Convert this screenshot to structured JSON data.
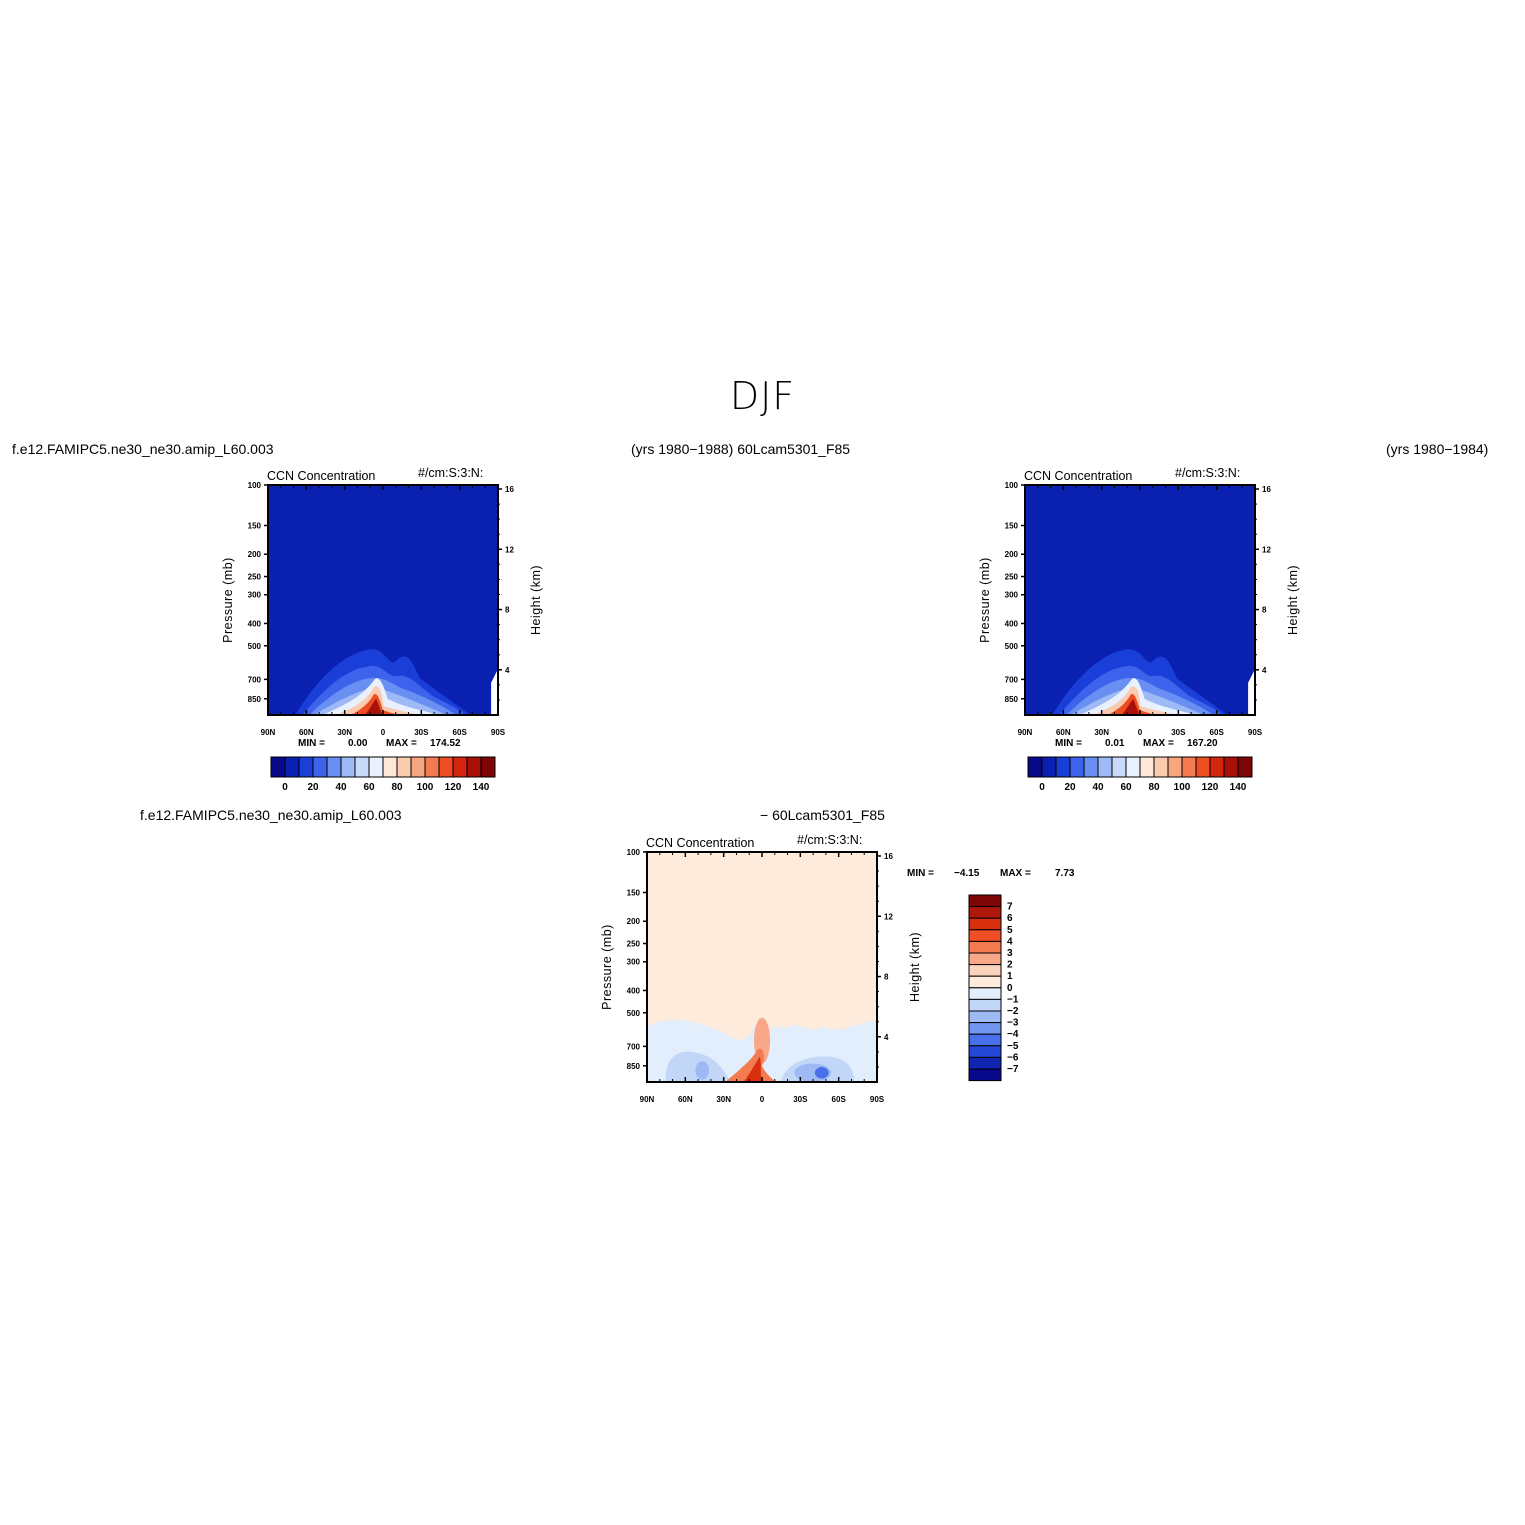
{
  "page": {
    "title": "DJF",
    "case_top_left": "f.e12.FAMIPC5.ne30_ne30.amip_L60.003",
    "case_top_mid": "(yrs 1980−1988)  60Lcam5301_F85",
    "case_top_right": "(yrs 1980−1984)",
    "case_bottom_left": "f.e12.FAMIPC5.ne30_ne30.amip_L60.003",
    "case_bottom_mid": "− 60Lcam5301_F85"
  },
  "chart_data": [
    {
      "type": "heatmap",
      "title": "CCN Concentration",
      "units": "#/cm:S:3:N:",
      "ylabel": "Pressure (mb)",
      "ylabel_right": "Height (km)",
      "x_ticks": [
        "90N",
        "60N",
        "30N",
        "0",
        "30S",
        "60S",
        "90S"
      ],
      "y_ticks": [
        100,
        150,
        200,
        250,
        300,
        400,
        500,
        700,
        850
      ],
      "y_right_ticks": [
        4,
        8,
        12,
        16
      ],
      "ylim": [
        100,
        1000
      ],
      "y_scale": "log",
      "min_label": "MIN =",
      "min": "0.00",
      "max_label": "MAX =",
      "max": "174.52",
      "colorbar_ticks": [
        0,
        20,
        40,
        60,
        80,
        100,
        120,
        140
      ],
      "colorbar_colors": [
        "#08088a",
        "#0a20b0",
        "#1a3fd8",
        "#3d63ec",
        "#6a8ff2",
        "#9dbaf7",
        "#c8dbfb",
        "#e8f1fd",
        "#fde8d8",
        "#fbcbb0",
        "#f7a680",
        "#f47a50",
        "#ee4d22",
        "#d2260e",
        "#a8100a",
        "#7d0505"
      ],
      "colorbar_orientation": "horizontal"
    },
    {
      "type": "heatmap",
      "title": "CCN Concentration",
      "units": "#/cm:S:3:N:",
      "ylabel": "Pressure (mb)",
      "ylabel_right": "Height (km)",
      "x_ticks": [
        "90N",
        "60N",
        "30N",
        "0",
        "30S",
        "60S",
        "90S"
      ],
      "y_ticks": [
        100,
        150,
        200,
        250,
        300,
        400,
        500,
        700,
        850
      ],
      "y_right_ticks": [
        4,
        8,
        12,
        16
      ],
      "ylim": [
        100,
        1000
      ],
      "y_scale": "log",
      "min_label": "MIN =",
      "min": "0.01",
      "max_label": "MAX =",
      "max": "167.20",
      "colorbar_ticks": [
        0,
        20,
        40,
        60,
        80,
        100,
        120,
        140
      ],
      "colorbar_colors": [
        "#08088a",
        "#0a20b0",
        "#1a3fd8",
        "#3d63ec",
        "#6a8ff2",
        "#9dbaf7",
        "#c8dbfb",
        "#e8f1fd",
        "#fde8d8",
        "#fbcbb0",
        "#f7a680",
        "#f47a50",
        "#ee4d22",
        "#d2260e",
        "#a8100a",
        "#7d0505"
      ],
      "colorbar_orientation": "horizontal"
    },
    {
      "type": "heatmap",
      "title": "CCN Concentration",
      "units": "#/cm:S:3:N:",
      "ylabel": "Pressure (mb)",
      "ylabel_right": "Height (km)",
      "x_ticks": [
        "90N",
        "60N",
        "30N",
        "0",
        "30S",
        "60S",
        "90S"
      ],
      "y_ticks": [
        100,
        150,
        200,
        250,
        300,
        400,
        500,
        700,
        850
      ],
      "y_right_ticks": [
        4,
        8,
        12,
        16
      ],
      "ylim": [
        100,
        1000
      ],
      "y_scale": "log",
      "min_label": "MIN =",
      "min": "−4.15",
      "max_label": "MAX =",
      "max": "7.73",
      "colorbar_ticks": [
        "7",
        "6",
        "5",
        "4",
        "3",
        "2",
        "1",
        "0",
        "−1",
        "−2",
        "−3",
        "−4",
        "−5",
        "−6",
        "−7"
      ],
      "colorbar_colors": [
        "#7d0505",
        "#b0180c",
        "#d8300f",
        "#f04e24",
        "#f47a50",
        "#f8a888",
        "#fcd3bd",
        "#feebdc",
        "#e3eefc",
        "#c2d7f8",
        "#9dbaf5",
        "#7096f0",
        "#4a6fea",
        "#2447d8",
        "#0f24b0",
        "#08088a"
      ],
      "colorbar_orientation": "vertical"
    }
  ]
}
